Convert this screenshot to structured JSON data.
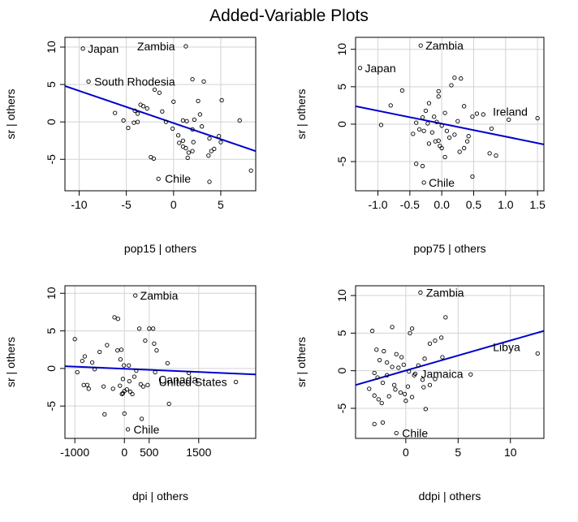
{
  "figure_title": "Added-Variable Plots",
  "chart_data": [
    {
      "type": "scatter",
      "xlabel": "pop15 | others",
      "ylabel": "sr  | others",
      "xlim": [
        -11.5,
        8.7
      ],
      "ylim": [
        -9.2,
        11.3
      ],
      "xticks": [
        -10,
        -5,
        0,
        5
      ],
      "yticks": [
        -5,
        0,
        5,
        10
      ],
      "fit_line": {
        "x1": -11.5,
        "y1": 4.8,
        "x2": 8.7,
        "y2": -3.9
      },
      "points": [
        [
          -9.6,
          9.8
        ],
        [
          1.3,
          10.1
        ],
        [
          -9.0,
          5.4
        ],
        [
          -1.5,
          3.9
        ],
        [
          -2.0,
          4.3
        ],
        [
          -3.5,
          2.3
        ],
        [
          -3.2,
          2.1
        ],
        [
          -4.1,
          1.5
        ],
        [
          -2.8,
          1.8
        ],
        [
          -3.8,
          1.1
        ],
        [
          -1.2,
          1.4
        ],
        [
          0.0,
          2.7
        ],
        [
          1.0,
          0.2
        ],
        [
          1.4,
          0.1
        ],
        [
          2.0,
          5.7
        ],
        [
          3.2,
          5.4
        ],
        [
          2.6,
          2.8
        ],
        [
          5.1,
          2.9
        ],
        [
          2.8,
          1.0
        ],
        [
          3.0,
          -0.6
        ],
        [
          -0.8,
          0.0
        ],
        [
          -3.8,
          0.0
        ],
        [
          -4.8,
          -0.8
        ],
        [
          -4.2,
          -0.1
        ],
        [
          -0.1,
          -0.9
        ],
        [
          -6.2,
          1.2
        ],
        [
          -5.3,
          0.2
        ],
        [
          0.5,
          -1.8
        ],
        [
          0.6,
          -2.8
        ],
        [
          1.0,
          -3.3
        ],
        [
          1.6,
          -4.1
        ],
        [
          2.1,
          -2.7
        ],
        [
          2.0,
          -3.9
        ],
        [
          3.7,
          -4.5
        ],
        [
          4.3,
          -3.6
        ],
        [
          4.8,
          -1.9
        ],
        [
          7.0,
          0.2
        ],
        [
          8.2,
          -6.5
        ],
        [
          5.0,
          -2.7
        ],
        [
          3.8,
          -2.2
        ],
        [
          -2.1,
          -4.9
        ],
        [
          -2.4,
          -4.7
        ],
        [
          -1.6,
          -7.6
        ],
        [
          1.5,
          -4.8
        ],
        [
          1.0,
          -2.5
        ],
        [
          4.0,
          -3.9
        ],
        [
          3.8,
          -8.0
        ],
        [
          2.2,
          0.3
        ],
        [
          2.0,
          -1.0
        ],
        [
          1.3,
          -3.5
        ]
      ],
      "labels": [
        {
          "text": "Japan",
          "x": -9.6,
          "y": 9.8
        },
        {
          "text": "Zambia",
          "x": 1.3,
          "y": 10.1
        },
        {
          "text": "South Rhodesia",
          "x": -9.0,
          "y": 5.4
        },
        {
          "text": "Chile",
          "x": -1.6,
          "y": -7.6
        }
      ]
    },
    {
      "type": "scatter",
      "xlabel": "pop75 | others",
      "ylabel": "sr  | others",
      "xlim": [
        -1.35,
        1.6
      ],
      "ylim": [
        -8.9,
        11.6
      ],
      "xticks": [
        -1.0,
        -0.5,
        0.0,
        0.5,
        1.0,
        1.5
      ],
      "yticks": [
        -5,
        0,
        5,
        10
      ],
      "fit_line": {
        "x1": -1.35,
        "y1": 2.4,
        "x2": 1.6,
        "y2": -2.7
      },
      "points": [
        [
          -0.33,
          10.5
        ],
        [
          -1.28,
          7.5
        ],
        [
          -0.62,
          4.5
        ],
        [
          -0.8,
          2.5
        ],
        [
          -0.95,
          -0.1
        ],
        [
          -0.25,
          1.8
        ],
        [
          -0.3,
          0.9
        ],
        [
          -0.2,
          2.8
        ],
        [
          -0.05,
          3.7
        ],
        [
          0.05,
          1.5
        ],
        [
          0.15,
          5.2
        ],
        [
          0.2,
          6.2
        ],
        [
          0.3,
          6.1
        ],
        [
          0.35,
          2.4
        ],
        [
          0.48,
          1.0
        ],
        [
          0.55,
          1.4
        ],
        [
          0.65,
          1.3
        ],
        [
          1.05,
          0.6
        ],
        [
          1.5,
          0.8
        ],
        [
          0.78,
          -0.6
        ],
        [
          -0.4,
          0.2
        ],
        [
          -0.35,
          -0.7
        ],
        [
          -0.22,
          0.1
        ],
        [
          -0.12,
          1.0
        ],
        [
          -0.08,
          0.3
        ],
        [
          -0.05,
          -2.2
        ],
        [
          -0.03,
          -2.9
        ],
        [
          0.0,
          -3.2
        ],
        [
          0.08,
          -0.9
        ],
        [
          0.12,
          -1.8
        ],
        [
          0.2,
          -1.4
        ],
        [
          0.28,
          -3.7
        ],
        [
          0.35,
          -3.2
        ],
        [
          0.4,
          -2.3
        ],
        [
          0.42,
          -1.6
        ],
        [
          -0.2,
          -2.6
        ],
        [
          -0.28,
          -0.9
        ],
        [
          -0.15,
          -1.1
        ],
        [
          -0.45,
          -1.3
        ],
        [
          0.05,
          -4.4
        ],
        [
          -0.4,
          -5.3
        ],
        [
          -0.3,
          -5.6
        ],
        [
          -0.28,
          -7.8
        ],
        [
          0.48,
          -7.0
        ],
        [
          0.75,
          -3.9
        ],
        [
          0.85,
          -4.2
        ],
        [
          0.0,
          -0.2
        ],
        [
          -0.1,
          -2.3
        ],
        [
          0.25,
          0.4
        ],
        [
          -0.05,
          4.4
        ]
      ],
      "labels": [
        {
          "text": "Zambia",
          "x": -0.33,
          "y": 10.5
        },
        {
          "text": "Japan",
          "x": -1.28,
          "y": 7.5
        },
        {
          "text": "Ireland",
          "x": 1.5,
          "y": 0.8
        },
        {
          "text": "Chile",
          "x": -0.28,
          "y": -7.8
        }
      ]
    },
    {
      "type": "scatter",
      "xlabel": "dpi | others",
      "ylabel": "sr  | others",
      "xlim": [
        -1200,
        2650
      ],
      "ylim": [
        -9.3,
        11.0
      ],
      "xticks": [
        -1000,
        0,
        500,
        1500
      ],
      "xticklabels": [
        "-1000",
        "0",
        "500",
        "1500"
      ],
      "yticks": [
        -5,
        0,
        5,
        10
      ],
      "fit_line": {
        "x1": -1200,
        "y1": 0.3,
        "x2": 2650,
        "y2": -0.8
      },
      "points": [
        [
          220,
          9.7
        ],
        [
          -1000,
          3.9
        ],
        [
          -800,
          1.6
        ],
        [
          -850,
          1.0
        ],
        [
          -650,
          0.8
        ],
        [
          -500,
          2.2
        ],
        [
          -350,
          3.1
        ],
        [
          -200,
          6.8
        ],
        [
          -130,
          6.6
        ],
        [
          -140,
          2.4
        ],
        [
          -60,
          2.5
        ],
        [
          -80,
          1.2
        ],
        [
          -10,
          0.4
        ],
        [
          90,
          0.4
        ],
        [
          300,
          5.3
        ],
        [
          500,
          5.3
        ],
        [
          580,
          5.3
        ],
        [
          420,
          3.7
        ],
        [
          600,
          3.3
        ],
        [
          650,
          2.4
        ],
        [
          -600,
          -0.1
        ],
        [
          -950,
          -0.5
        ],
        [
          -820,
          -2.2
        ],
        [
          -720,
          -2.7
        ],
        [
          -750,
          -2.2
        ],
        [
          -420,
          -2.4
        ],
        [
          -230,
          -2.7
        ],
        [
          -90,
          -2.3
        ],
        [
          0,
          -3.0
        ],
        [
          50,
          -2.8
        ],
        [
          -30,
          -3.3
        ],
        [
          100,
          -1.7
        ],
        [
          200,
          -1.1
        ],
        [
          330,
          -2.1
        ],
        [
          380,
          -2.4
        ],
        [
          470,
          -2.2
        ],
        [
          -50,
          -3.4
        ],
        [
          120,
          -3.1
        ],
        [
          160,
          -3.4
        ],
        [
          -30,
          -1.4
        ],
        [
          -400,
          -6.1
        ],
        [
          0,
          -6.0
        ],
        [
          350,
          -6.7
        ],
        [
          70,
          -8.1
        ],
        [
          900,
          -4.7
        ],
        [
          1300,
          -0.6
        ],
        [
          2250,
          -1.8
        ],
        [
          620,
          -0.5
        ],
        [
          870,
          0.7
        ],
        [
          240,
          -0.3
        ]
      ],
      "labels": [
        {
          "text": "Zambia",
          "x": 220,
          "y": 9.7
        },
        {
          "text": "Canada",
          "x": 620,
          "y": -0.5
        },
        {
          "text": "United States",
          "x": 2250,
          "y": -1.8
        },
        {
          "text": "Chile",
          "x": 70,
          "y": -8.1
        }
      ]
    },
    {
      "type": "scatter",
      "xlabel": "ddpi | others",
      "ylabel": "sr  | others",
      "xlim": [
        -4.8,
        13.2
      ],
      "ylim": [
        -9.0,
        11.3
      ],
      "xticks": [
        0,
        5,
        10
      ],
      "yticks": [
        -5,
        0,
        5,
        10
      ],
      "fit_line": {
        "x1": -4.8,
        "y1": -1.9,
        "x2": 13.2,
        "y2": 5.3
      },
      "points": [
        [
          1.4,
          10.4
        ],
        [
          12.6,
          2.3
        ],
        [
          0.9,
          -0.4
        ],
        [
          -0.9,
          -8.3
        ],
        [
          -3.2,
          5.3
        ],
        [
          -1.3,
          5.8
        ],
        [
          0.4,
          5.0
        ],
        [
          0.6,
          5.6
        ],
        [
          2.3,
          3.6
        ],
        [
          2.8,
          4.0
        ],
        [
          3.4,
          4.4
        ],
        [
          3.8,
          7.1
        ],
        [
          3.5,
          1.8
        ],
        [
          -2.8,
          2.8
        ],
        [
          -2.1,
          2.6
        ],
        [
          -0.9,
          2.2
        ],
        [
          -0.4,
          1.8
        ],
        [
          -1.8,
          1.1
        ],
        [
          -2.5,
          1.4
        ],
        [
          -1.3,
          0.5
        ],
        [
          -0.7,
          0.4
        ],
        [
          -0.2,
          0.8
        ],
        [
          0.3,
          -0.1
        ],
        [
          1.2,
          0.7
        ],
        [
          1.8,
          1.6
        ],
        [
          -3.0,
          -0.3
        ],
        [
          -2.7,
          -0.9
        ],
        [
          -2.2,
          -1.6
        ],
        [
          -1.8,
          -0.6
        ],
        [
          -1.1,
          -1.9
        ],
        [
          -0.5,
          -2.9
        ],
        [
          -0.1,
          -3.1
        ],
        [
          0.2,
          -2.1
        ],
        [
          0.6,
          -3.5
        ],
        [
          1.6,
          -1.2
        ],
        [
          -3.5,
          -2.4
        ],
        [
          -3.0,
          -3.3
        ],
        [
          -2.6,
          -3.8
        ],
        [
          -2.3,
          -4.3
        ],
        [
          -1.6,
          -3.4
        ],
        [
          -1.0,
          -2.5
        ],
        [
          0.0,
          -4.0
        ],
        [
          0.8,
          -0.6
        ],
        [
          1.7,
          -2.2
        ],
        [
          1.9,
          -5.1
        ],
        [
          -3.0,
          -7.1
        ],
        [
          -2.2,
          -6.9
        ],
        [
          2.3,
          -1.9
        ],
        [
          2.8,
          -1.1
        ],
        [
          6.2,
          -0.5
        ]
      ],
      "labels": [
        {
          "text": "Zambia",
          "x": 1.4,
          "y": 10.4
        },
        {
          "text": "Libya",
          "x": 12.6,
          "y": 2.3
        },
        {
          "text": "Jamaica",
          "x": 0.9,
          "y": -0.4
        },
        {
          "text": "Chile",
          "x": -0.9,
          "y": -8.3
        }
      ]
    }
  ]
}
